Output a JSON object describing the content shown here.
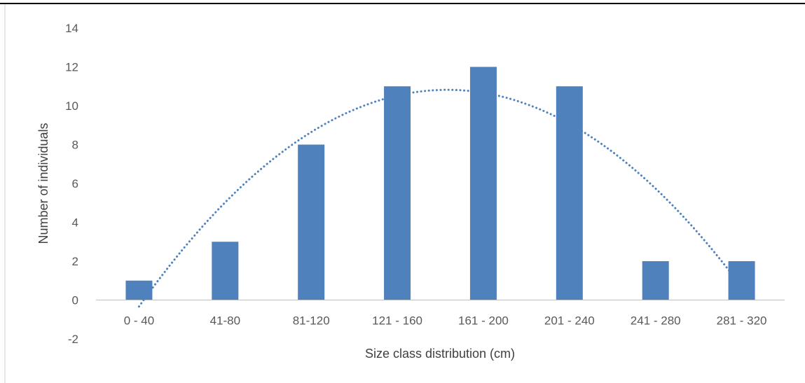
{
  "chart_data": {
    "type": "bar",
    "title": "",
    "xlabel": "Size class distribution (cm)",
    "ylabel": "Number of individuals",
    "categories": [
      "0 - 40",
      "41-80",
      "81-120",
      "121 - 160",
      "161 - 200",
      "201 - 240",
      "241 - 280",
      "281 - 320"
    ],
    "series": [
      {
        "values": [
          1,
          3,
          8,
          11,
          12,
          11,
          2,
          2
        ]
      }
    ],
    "ylim": [
      -2,
      14
    ],
    "yticks": [
      -2,
      0,
      2,
      4,
      6,
      8,
      10,
      12,
      14
    ],
    "grid": false,
    "legend": "none",
    "trendline": {
      "type": "polynomial",
      "order": 2,
      "style": "dotted"
    },
    "colors": {
      "bar": "#4f81bd",
      "trendline": "#4f81bd",
      "axis": "#bfbfbf"
    }
  }
}
